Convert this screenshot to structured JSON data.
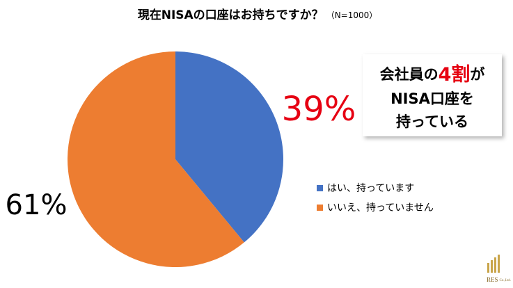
{
  "chart_data": {
    "type": "pie",
    "title": "現在NISAの口座はお持ちですか？",
    "subtitle": "（N=1000）",
    "categories": [
      "はい、持っています",
      "いいえ、持っていません"
    ],
    "values": [
      39,
      61
    ],
    "value_labels": [
      "39%",
      "61%"
    ],
    "colors": [
      "#4472c4",
      "#ed7d31"
    ],
    "value_label_colors": [
      "#e60012",
      "#000000"
    ],
    "annotation": {
      "prefix": "会社員の",
      "highlight": "4割",
      "suffix": "が",
      "lines": [
        "NISA口座を",
        "持っている"
      ]
    },
    "logo": {
      "name": "RES",
      "suffix": "Co.,Ltd."
    }
  }
}
